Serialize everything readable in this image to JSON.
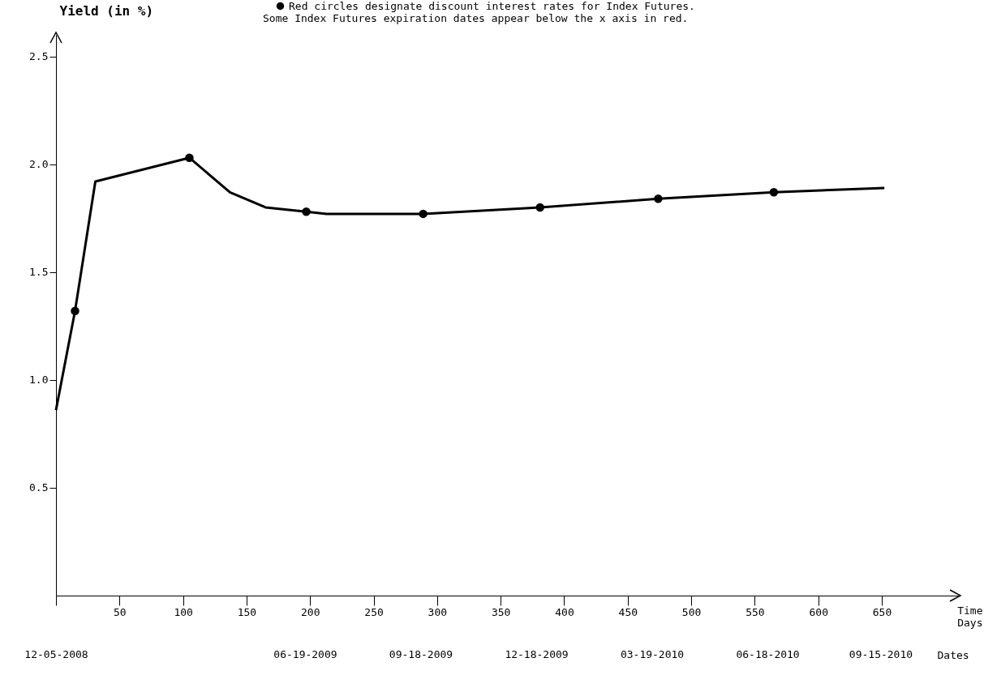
{
  "chart_data": {
    "type": "line",
    "ylabel": "Yield (in %)",
    "xlabel": "Time Days",
    "x2label": "Dates",
    "xlim": [
      0,
      710
    ],
    "xticks": [
      {
        "value": 0,
        "label": null
      },
      50,
      100,
      150,
      200,
      250,
      300,
      350,
      400,
      450,
      500,
      550,
      600,
      650
    ],
    "x2lim": [
      "2008-12-05",
      "2010-11-15"
    ],
    "x2ticks": [
      {
        "value": "2008-12-05",
        "label": "12-05-2008"
      },
      {
        "value": "2009-06-19",
        "label": "06-19-2009"
      },
      {
        "value": "2009-09-18",
        "label": "09-18-2009"
      },
      {
        "value": "2009-12-18",
        "label": "12-18-2009"
      },
      {
        "value": "2010-03-19",
        "label": "03-19-2010"
      },
      {
        "value": "2010-06-18",
        "label": "06-18-2010"
      },
      {
        "value": "2010-09-15",
        "label": "09-15-2010"
      }
    ],
    "ylim": [
      0,
      2.6
    ],
    "yticks": [
      0.5,
      {
        "value": 1,
        "label": "1.0"
      },
      1.5,
      {
        "value": 2,
        "label": "2.0"
      },
      2.5
    ],
    "series": [
      {
        "marker": "none",
        "color": "#000000",
        "x": [
          0,
          15,
          31,
          105,
          137,
          165,
          197,
          213,
          289,
          381,
          474,
          565,
          652
        ],
        "values": [
          0.86,
          1.32,
          1.92,
          2.03,
          1.87,
          1.8,
          1.78,
          1.77,
          1.77,
          1.8,
          1.84,
          1.87,
          1.89
        ]
      },
      {
        "type": "scatter",
        "marker": "circle",
        "name": "Red circles designate discount interest rates for Index Futures.",
        "color": "#000000",
        "x": [
          15,
          105,
          197,
          289,
          381,
          474,
          565
        ],
        "values": [
          1.32,
          2.03,
          1.78,
          1.77,
          1.8,
          1.84,
          1.87
        ]
      }
    ],
    "grid": false,
    "legend": "top right",
    "annotations": [
      "Some Index Futures expiration dates appear below the x axis in red."
    ]
  }
}
